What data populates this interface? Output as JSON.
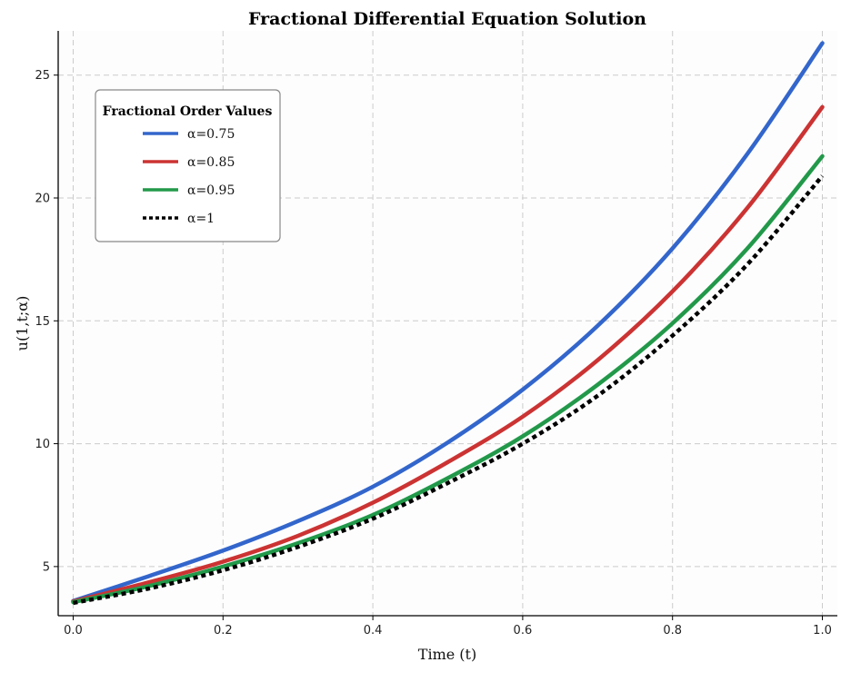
{
  "chart_data": {
    "type": "line",
    "title": "Fractional Differential Equation Solution",
    "xlabel": "Time (t)",
    "ylabel": "u(1,t;α)",
    "xlim": [
      -0.02,
      1.02
    ],
    "ylim": [
      3.0,
      26.8
    ],
    "xticks": [
      0.0,
      0.2,
      0.4,
      0.6,
      0.8,
      1.0
    ],
    "xtick_labels": [
      "0.0",
      "0.2",
      "0.4",
      "0.6",
      "0.8",
      "1.0"
    ],
    "yticks": [
      5,
      10,
      15,
      20,
      25
    ],
    "ytick_labels": [
      "5",
      "10",
      "15",
      "20",
      "25"
    ],
    "grid": true,
    "legend": {
      "title": "Fractional Order Values",
      "placement": "upper-left"
    },
    "x": [
      0.0,
      0.1,
      0.2,
      0.3,
      0.4,
      0.5,
      0.6,
      0.7,
      0.8,
      0.9,
      1.0
    ],
    "series": [
      {
        "name": "α=0.75",
        "color": "#3366cc",
        "style": "solid",
        "values": [
          3.6,
          4.6,
          5.65,
          6.85,
          8.25,
          10.05,
          12.2,
          14.8,
          17.95,
          21.8,
          26.3
        ]
      },
      {
        "name": "α=0.85",
        "color": "#cc3333",
        "style": "solid",
        "values": [
          3.58,
          4.35,
          5.2,
          6.25,
          7.6,
          9.25,
          11.1,
          13.4,
          16.2,
          19.6,
          23.7
        ]
      },
      {
        "name": "α=0.95",
        "color": "#22994a",
        "style": "solid",
        "values": [
          3.55,
          4.2,
          5.0,
          5.95,
          7.1,
          8.6,
          10.3,
          12.4,
          14.9,
          17.95,
          21.7
        ]
      },
      {
        "name": "α=1",
        "color": "#000000",
        "style": "dotted",
        "values": [
          3.52,
          4.1,
          4.85,
          5.8,
          6.95,
          8.4,
          10.0,
          11.95,
          14.4,
          17.3,
          20.9
        ]
      }
    ]
  }
}
